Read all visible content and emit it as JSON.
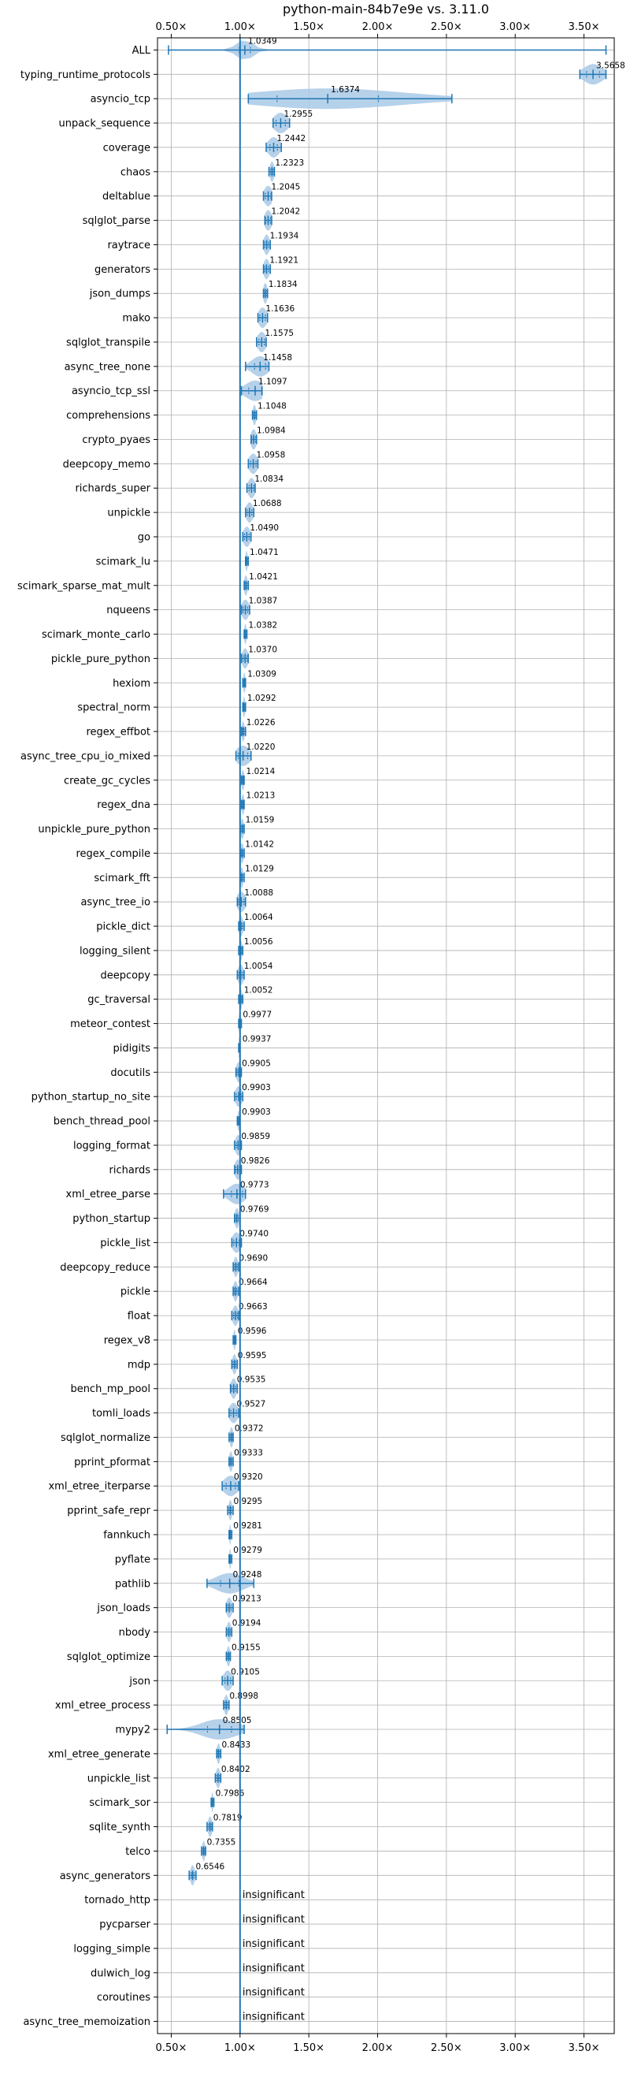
{
  "chart_data": {
    "type": "violin",
    "title": "python-main-84b7e9e vs. 3.11.0",
    "xlabel": "",
    "ylabel": "",
    "xlim": [
      0.4,
      3.72
    ],
    "x_ticks": [
      0.5,
      1.0,
      1.5,
      2.0,
      2.5,
      3.0,
      3.5
    ],
    "x_tick_labels": [
      "0.50×",
      "1.00×",
      "1.50×",
      "2.00×",
      "2.50×",
      "3.00×",
      "3.50×"
    ],
    "reference_line": 1.0,
    "grid": true,
    "colors": {
      "violin": "#1f77b4",
      "violin_fill": "#a9c9e6",
      "grid": "#b0b0b0"
    },
    "insignificant_text": "insignificant",
    "benchmarks": [
      {
        "name": "ALL",
        "value": 1.0349,
        "label": "1.0349",
        "min": 0.48,
        "max": 3.66,
        "spread": 0.06
      },
      {
        "name": "typing_runtime_protocols",
        "value": 3.5658,
        "label": "3.5658",
        "min": 3.47,
        "max": 3.66,
        "spread": 0.07
      },
      {
        "name": "asyncio_tcp",
        "value": 1.6374,
        "label": "1.6374",
        "min": 1.06,
        "max": 2.54,
        "spread": 0.55
      },
      {
        "name": "unpack_sequence",
        "value": 1.2955,
        "label": "1.2955",
        "min": 1.24,
        "max": 1.36,
        "spread": 0.05
      },
      {
        "name": "coverage",
        "value": 1.2442,
        "label": "1.2442",
        "min": 1.19,
        "max": 1.3,
        "spread": 0.04
      },
      {
        "name": "chaos",
        "value": 1.2323,
        "label": "1.2323",
        "min": 1.21,
        "max": 1.25,
        "spread": 0.015
      },
      {
        "name": "deltablue",
        "value": 1.2045,
        "label": "1.2045",
        "min": 1.17,
        "max": 1.23,
        "spread": 0.03
      },
      {
        "name": "sqlglot_parse",
        "value": 1.2042,
        "label": "1.2042",
        "min": 1.18,
        "max": 1.23,
        "spread": 0.025
      },
      {
        "name": "raytrace",
        "value": 1.1934,
        "label": "1.1934",
        "min": 1.17,
        "max": 1.22,
        "spread": 0.02
      },
      {
        "name": "generators",
        "value": 1.1921,
        "label": "1.1921",
        "min": 1.17,
        "max": 1.22,
        "spread": 0.02
      },
      {
        "name": "json_dumps",
        "value": 1.1834,
        "label": "1.1834",
        "min": 1.17,
        "max": 1.2,
        "spread": 0.015
      },
      {
        "name": "mako",
        "value": 1.1636,
        "label": "1.1636",
        "min": 1.13,
        "max": 1.2,
        "spread": 0.03
      },
      {
        "name": "sqlglot_transpile",
        "value": 1.1575,
        "label": "1.1575",
        "min": 1.12,
        "max": 1.19,
        "spread": 0.03
      },
      {
        "name": "async_tree_none",
        "value": 1.1458,
        "label": "1.1458",
        "min": 1.04,
        "max": 1.21,
        "spread": 0.06
      },
      {
        "name": "asyncio_tcp_ssl",
        "value": 1.1097,
        "label": "1.1097",
        "min": 1.01,
        "max": 1.16,
        "spread": 0.07
      },
      {
        "name": "comprehensions",
        "value": 1.1048,
        "label": "1.1048",
        "min": 1.09,
        "max": 1.12,
        "spread": 0.012
      },
      {
        "name": "crypto_pyaes",
        "value": 1.0984,
        "label": "1.0984",
        "min": 1.08,
        "max": 1.12,
        "spread": 0.02
      },
      {
        "name": "deepcopy_memo",
        "value": 1.0958,
        "label": "1.0958",
        "min": 1.06,
        "max": 1.13,
        "spread": 0.03
      },
      {
        "name": "richards_super",
        "value": 1.0834,
        "label": "1.0834",
        "min": 1.05,
        "max": 1.11,
        "spread": 0.025
      },
      {
        "name": "unpickle",
        "value": 1.0688,
        "label": "1.0688",
        "min": 1.04,
        "max": 1.1,
        "spread": 0.025
      },
      {
        "name": "go",
        "value": 1.049,
        "label": "1.0490",
        "min": 1.02,
        "max": 1.08,
        "spread": 0.025
      },
      {
        "name": "scimark_lu",
        "value": 1.0471,
        "label": "1.0471",
        "min": 1.04,
        "max": 1.06,
        "spread": 0.008
      },
      {
        "name": "scimark_sparse_mat_mult",
        "value": 1.0421,
        "label": "1.0421",
        "min": 1.03,
        "max": 1.06,
        "spread": 0.012
      },
      {
        "name": "nqueens",
        "value": 1.0387,
        "label": "1.0387",
        "min": 1.01,
        "max": 1.07,
        "spread": 0.025
      },
      {
        "name": "scimark_monte_carlo",
        "value": 1.0382,
        "label": "1.0382",
        "min": 1.03,
        "max": 1.05,
        "spread": 0.008
      },
      {
        "name": "pickle_pure_python",
        "value": 1.037,
        "label": "1.0370",
        "min": 1.01,
        "max": 1.06,
        "spread": 0.02
      },
      {
        "name": "hexiom",
        "value": 1.0309,
        "label": "1.0309",
        "min": 1.02,
        "max": 1.04,
        "spread": 0.008
      },
      {
        "name": "spectral_norm",
        "value": 1.0292,
        "label": "1.0292",
        "min": 1.02,
        "max": 1.04,
        "spread": 0.008
      },
      {
        "name": "regex_effbot",
        "value": 1.0226,
        "label": "1.0226",
        "min": 1.01,
        "max": 1.04,
        "spread": 0.01
      },
      {
        "name": "async_tree_cpu_io_mixed",
        "value": 1.022,
        "label": "1.0220",
        "min": 0.97,
        "max": 1.08,
        "spread": 0.05
      },
      {
        "name": "create_gc_cycles",
        "value": 1.0214,
        "label": "1.0214",
        "min": 1.01,
        "max": 1.03,
        "spread": 0.01
      },
      {
        "name": "regex_dna",
        "value": 1.0213,
        "label": "1.0213",
        "min": 1.01,
        "max": 1.03,
        "spread": 0.01
      },
      {
        "name": "unpickle_pure_python",
        "value": 1.0159,
        "label": "1.0159",
        "min": 1.0,
        "max": 1.03,
        "spread": 0.012
      },
      {
        "name": "regex_compile",
        "value": 1.0142,
        "label": "1.0142",
        "min": 1.0,
        "max": 1.03,
        "spread": 0.012
      },
      {
        "name": "scimark_fft",
        "value": 1.0129,
        "label": "1.0129",
        "min": 1.0,
        "max": 1.03,
        "spread": 0.01
      },
      {
        "name": "async_tree_io",
        "value": 1.0088,
        "label": "1.0088",
        "min": 0.98,
        "max": 1.04,
        "spread": 0.03
      },
      {
        "name": "pickle_dict",
        "value": 1.0064,
        "label": "1.0064",
        "min": 0.99,
        "max": 1.03,
        "spread": 0.015
      },
      {
        "name": "logging_silent",
        "value": 1.0056,
        "label": "1.0056",
        "min": 0.99,
        "max": 1.02,
        "spread": 0.01
      },
      {
        "name": "deepcopy",
        "value": 1.0054,
        "label": "1.0054",
        "min": 0.98,
        "max": 1.03,
        "spread": 0.02
      },
      {
        "name": "gc_traversal",
        "value": 1.0052,
        "label": "1.0052",
        "min": 0.99,
        "max": 1.02,
        "spread": 0.01
      },
      {
        "name": "meteor_contest",
        "value": 0.9977,
        "label": "0.9977",
        "min": 0.99,
        "max": 1.01,
        "spread": 0.008
      },
      {
        "name": "pidigits",
        "value": 0.9937,
        "label": "0.9937",
        "min": 0.99,
        "max": 1.0,
        "spread": 0.006
      },
      {
        "name": "docutils",
        "value": 0.9905,
        "label": "0.9905",
        "min": 0.97,
        "max": 1.01,
        "spread": 0.018
      },
      {
        "name": "python_startup_no_site",
        "value": 0.9903,
        "label": "0.9903",
        "min": 0.96,
        "max": 1.02,
        "spread": 0.025
      },
      {
        "name": "bench_thread_pool",
        "value": 0.9903,
        "label": "0.9903",
        "min": 0.98,
        "max": 1.0,
        "spread": 0.008
      },
      {
        "name": "logging_format",
        "value": 0.9859,
        "label": "0.9859",
        "min": 0.96,
        "max": 1.01,
        "spread": 0.02
      },
      {
        "name": "richards",
        "value": 0.9826,
        "label": "0.9826",
        "min": 0.96,
        "max": 1.01,
        "spread": 0.02
      },
      {
        "name": "xml_etree_parse",
        "value": 0.9773,
        "label": "0.9773",
        "min": 0.88,
        "max": 1.04,
        "spread": 0.06
      },
      {
        "name": "python_startup",
        "value": 0.9769,
        "label": "0.9769",
        "min": 0.96,
        "max": 1.0,
        "spread": 0.015
      },
      {
        "name": "pickle_list",
        "value": 0.974,
        "label": "0.9740",
        "min": 0.94,
        "max": 1.01,
        "spread": 0.03
      },
      {
        "name": "deepcopy_reduce",
        "value": 0.969,
        "label": "0.9690",
        "min": 0.95,
        "max": 0.99,
        "spread": 0.015
      },
      {
        "name": "pickle",
        "value": 0.9664,
        "label": "0.9664",
        "min": 0.95,
        "max": 0.99,
        "spread": 0.015
      },
      {
        "name": "float",
        "value": 0.9663,
        "label": "0.9663",
        "min": 0.94,
        "max": 0.99,
        "spread": 0.02
      },
      {
        "name": "regex_v8",
        "value": 0.9596,
        "label": "0.9596",
        "min": 0.95,
        "max": 0.97,
        "spread": 0.008
      },
      {
        "name": "mdp",
        "value": 0.9595,
        "label": "0.9595",
        "min": 0.94,
        "max": 0.98,
        "spread": 0.015
      },
      {
        "name": "bench_mp_pool",
        "value": 0.9535,
        "label": "0.9535",
        "min": 0.93,
        "max": 0.98,
        "spread": 0.02
      },
      {
        "name": "tomli_loads",
        "value": 0.9527,
        "label": "0.9527",
        "min": 0.92,
        "max": 0.99,
        "spread": 0.03
      },
      {
        "name": "sqlglot_normalize",
        "value": 0.9372,
        "label": "0.9372",
        "min": 0.92,
        "max": 0.95,
        "spread": 0.012
      },
      {
        "name": "pprint_pformat",
        "value": 0.9333,
        "label": "0.9333",
        "min": 0.92,
        "max": 0.95,
        "spread": 0.012
      },
      {
        "name": "xml_etree_iterparse",
        "value": 0.932,
        "label": "0.9320",
        "min": 0.87,
        "max": 0.99,
        "spread": 0.05
      },
      {
        "name": "pprint_safe_repr",
        "value": 0.9295,
        "label": "0.9295",
        "min": 0.91,
        "max": 0.95,
        "spread": 0.012
      },
      {
        "name": "fannkuch",
        "value": 0.9281,
        "label": "0.9281",
        "min": 0.92,
        "max": 0.94,
        "spread": 0.006
      },
      {
        "name": "pyflate",
        "value": 0.9279,
        "label": "0.9279",
        "min": 0.92,
        "max": 0.94,
        "spread": 0.006
      },
      {
        "name": "pathlib",
        "value": 0.9248,
        "label": "0.9248",
        "min": 0.76,
        "max": 1.1,
        "spread": 0.1
      },
      {
        "name": "json_loads",
        "value": 0.9213,
        "label": "0.9213",
        "min": 0.9,
        "max": 0.95,
        "spread": 0.02
      },
      {
        "name": "nbody",
        "value": 0.9194,
        "label": "0.9194",
        "min": 0.9,
        "max": 0.94,
        "spread": 0.015
      },
      {
        "name": "sqlglot_optimize",
        "value": 0.9155,
        "label": "0.9155",
        "min": 0.9,
        "max": 0.93,
        "spread": 0.012
      },
      {
        "name": "json",
        "value": 0.9105,
        "label": "0.9105",
        "min": 0.87,
        "max": 0.95,
        "spread": 0.03
      },
      {
        "name": "xml_etree_process",
        "value": 0.8998,
        "label": "0.8998",
        "min": 0.88,
        "max": 0.92,
        "spread": 0.015
      },
      {
        "name": "mypy2",
        "value": 0.8505,
        "label": "0.8505",
        "min": 0.47,
        "max": 1.03,
        "spread": 0.13
      },
      {
        "name": "xml_etree_generate",
        "value": 0.8433,
        "label": "0.8433",
        "min": 0.83,
        "max": 0.86,
        "spread": 0.012
      },
      {
        "name": "unpickle_list",
        "value": 0.8402,
        "label": "0.8402",
        "min": 0.82,
        "max": 0.86,
        "spread": 0.015
      },
      {
        "name": "scimark_sor",
        "value": 0.7986,
        "label": "0.7986",
        "min": 0.79,
        "max": 0.81,
        "spread": 0.006
      },
      {
        "name": "sqlite_synth",
        "value": 0.7819,
        "label": "0.7819",
        "min": 0.76,
        "max": 0.8,
        "spread": 0.015
      },
      {
        "name": "telco",
        "value": 0.7355,
        "label": "0.7355",
        "min": 0.72,
        "max": 0.75,
        "spread": 0.01
      },
      {
        "name": "async_generators",
        "value": 0.6546,
        "label": "0.6546",
        "min": 0.63,
        "max": 0.68,
        "spread": 0.015
      },
      {
        "name": "tornado_http",
        "insignificant": true
      },
      {
        "name": "pycparser",
        "insignificant": true
      },
      {
        "name": "logging_simple",
        "insignificant": true
      },
      {
        "name": "dulwich_log",
        "insignificant": true
      },
      {
        "name": "coroutines",
        "insignificant": true
      },
      {
        "name": "async_tree_memoization",
        "insignificant": true
      }
    ]
  }
}
